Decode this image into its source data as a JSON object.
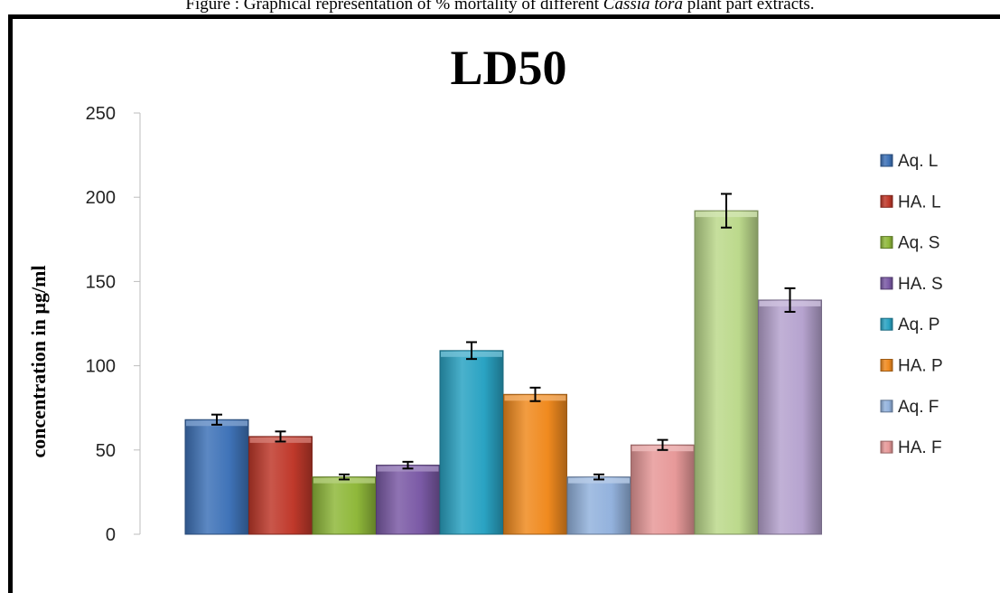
{
  "caption": {
    "prefix": "Figure : Graphical representation of % mortality of different ",
    "species": "Cassia tora",
    "suffix": " plant part extracts."
  },
  "chart_data": {
    "type": "bar",
    "title": "LD50",
    "xlabel": "",
    "ylabel": "concentration in  µg/ml",
    "ylim": [
      0,
      250
    ],
    "yticks": [
      0,
      50,
      100,
      150,
      200,
      250
    ],
    "grid": false,
    "legend_position": "right",
    "series": [
      {
        "name": "Aq. L",
        "value": 68,
        "error": 3,
        "color": "#3f73b8"
      },
      {
        "name": "HA. L",
        "value": 58,
        "error": 3,
        "color": "#c0392b"
      },
      {
        "name": "Aq. S",
        "value": 34,
        "error": 1.5,
        "color": "#8fb83a"
      },
      {
        "name": "HA. S",
        "value": 41,
        "error": 2,
        "color": "#7b5aa6"
      },
      {
        "name": "Aq. P",
        "value": 109,
        "error": 5,
        "color": "#2aa3c3"
      },
      {
        "name": "HA. P",
        "value": 83,
        "error": 4,
        "color": "#f08a1f"
      },
      {
        "name": "Aq. F",
        "value": 34,
        "error": 1.5,
        "color": "#93b2dd"
      },
      {
        "name": "HA. F",
        "value": 53,
        "error": 3,
        "color": "#e79999"
      },
      {
        "name": "",
        "value": 192,
        "error": 10,
        "color": "#bcd98c"
      },
      {
        "name": "",
        "value": 139,
        "error": 7,
        "color": "#b6a3cf"
      }
    ]
  }
}
